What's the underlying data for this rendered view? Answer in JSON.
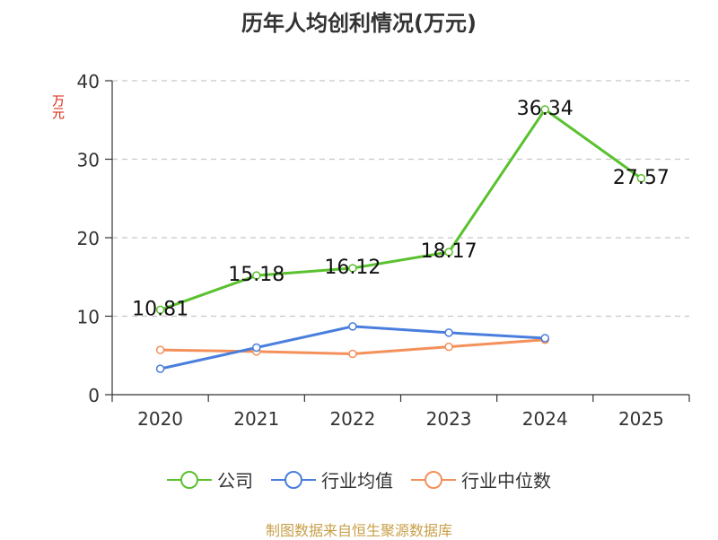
{
  "chart_data": {
    "type": "line",
    "title": "历年人均创利情况(万元)",
    "ylabel": "万元",
    "categories": [
      "2020",
      "2021",
      "2022",
      "2023",
      "2024",
      "2025"
    ],
    "ylim": [
      0,
      40
    ],
    "yticks": [
      "0",
      "10",
      "20",
      "30",
      "40"
    ],
    "grid": true,
    "legend_position": "bottom",
    "series": [
      {
        "name": "公司",
        "color": "#5ac12f",
        "values": [
          10.81,
          15.18,
          16.12,
          18.17,
          36.34,
          27.57
        ],
        "labels": [
          "10.81",
          "15.18",
          "16.12",
          "18.17",
          "36.34",
          "27.57"
        ]
      },
      {
        "name": "行业均值",
        "color": "#4a7edd",
        "values": [
          3.3,
          6.0,
          8.7,
          7.9,
          7.2,
          null
        ]
      },
      {
        "name": "行业中位数",
        "color": "#f4905a",
        "values": [
          5.7,
          5.5,
          5.2,
          6.1,
          7.0,
          null
        ]
      }
    ]
  },
  "source": "制图数据来自恒生聚源数据库"
}
